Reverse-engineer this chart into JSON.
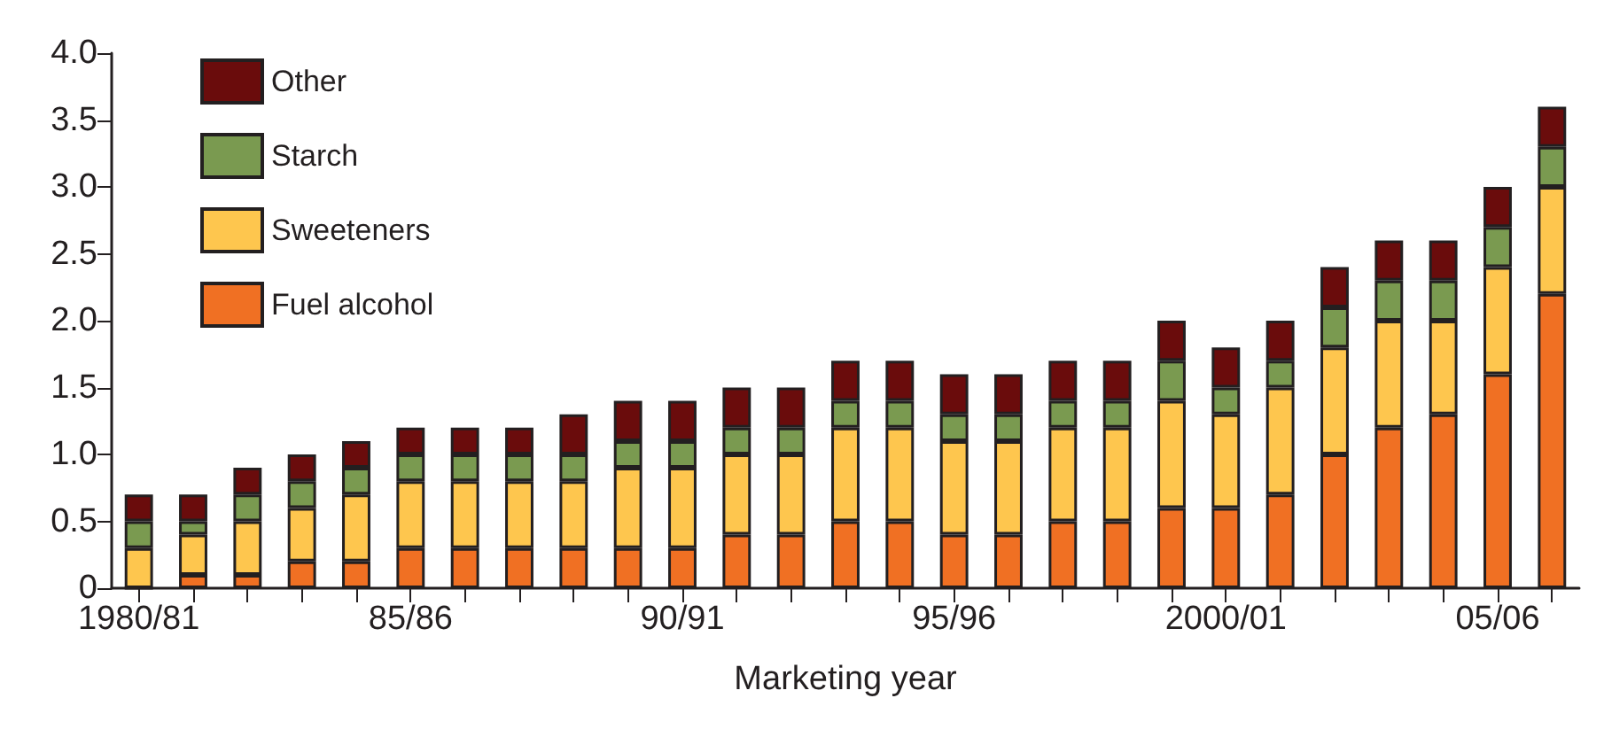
{
  "chart_data": {
    "type": "bar",
    "stacked": true,
    "xlabel": "Marketing year",
    "categories": [
      "1980/81",
      null,
      null,
      null,
      null,
      "85/86",
      null,
      null,
      null,
      null,
      "90/91",
      null,
      null,
      null,
      null,
      "95/96",
      null,
      null,
      null,
      null,
      "2000/01",
      null,
      null,
      null,
      null,
      "05/06",
      null
    ],
    "series": [
      {
        "name": "Fuel alcohol",
        "color": "#f07023",
        "values": [
          0,
          0.1,
          0.1,
          0.2,
          0.2,
          0.3,
          0.3,
          0.3,
          0.3,
          0.3,
          0.3,
          0.4,
          0.4,
          0.5,
          0.5,
          0.4,
          0.4,
          0.5,
          0.5,
          0.6,
          0.6,
          0.7,
          1.0,
          1.2,
          1.3,
          1.6,
          2.2
        ]
      },
      {
        "name": "Sweeteners",
        "color": "#fec64e",
        "values": [
          0.3,
          0.3,
          0.4,
          0.4,
          0.5,
          0.5,
          0.5,
          0.5,
          0.5,
          0.6,
          0.6,
          0.6,
          0.6,
          0.7,
          0.7,
          0.7,
          0.7,
          0.7,
          0.7,
          0.8,
          0.7,
          0.8,
          0.8,
          0.8,
          0.7,
          0.8,
          0.8
        ]
      },
      {
        "name": "Starch",
        "color": "#7a9a50",
        "values": [
          0.2,
          0.1,
          0.2,
          0.2,
          0.2,
          0.2,
          0.2,
          0.2,
          0.2,
          0.2,
          0.2,
          0.2,
          0.2,
          0.2,
          0.2,
          0.2,
          0.2,
          0.2,
          0.2,
          0.3,
          0.2,
          0.2,
          0.3,
          0.3,
          0.3,
          0.3,
          0.3
        ]
      },
      {
        "name": "Other",
        "color": "#6a0c0c",
        "values": [
          0.2,
          0.2,
          0.2,
          0.2,
          0.2,
          0.2,
          0.2,
          0.2,
          0.3,
          0.3,
          0.3,
          0.3,
          0.3,
          0.3,
          0.3,
          0.3,
          0.3,
          0.3,
          0.3,
          0.3,
          0.3,
          0.3,
          0.3,
          0.3,
          0.3,
          0.3,
          0.3
        ]
      }
    ],
    "ylim": [
      0,
      4.0
    ],
    "yticks": [
      0,
      0.5,
      {
        "value": 1,
        "label": "1.0"
      },
      1.5,
      {
        "value": 2,
        "label": "2.0"
      },
      2.5,
      {
        "value": 3,
        "label": "3.0"
      },
      3.5,
      {
        "value": 4,
        "label": "4.0"
      }
    ],
    "grid": false,
    "legend": "top left"
  }
}
